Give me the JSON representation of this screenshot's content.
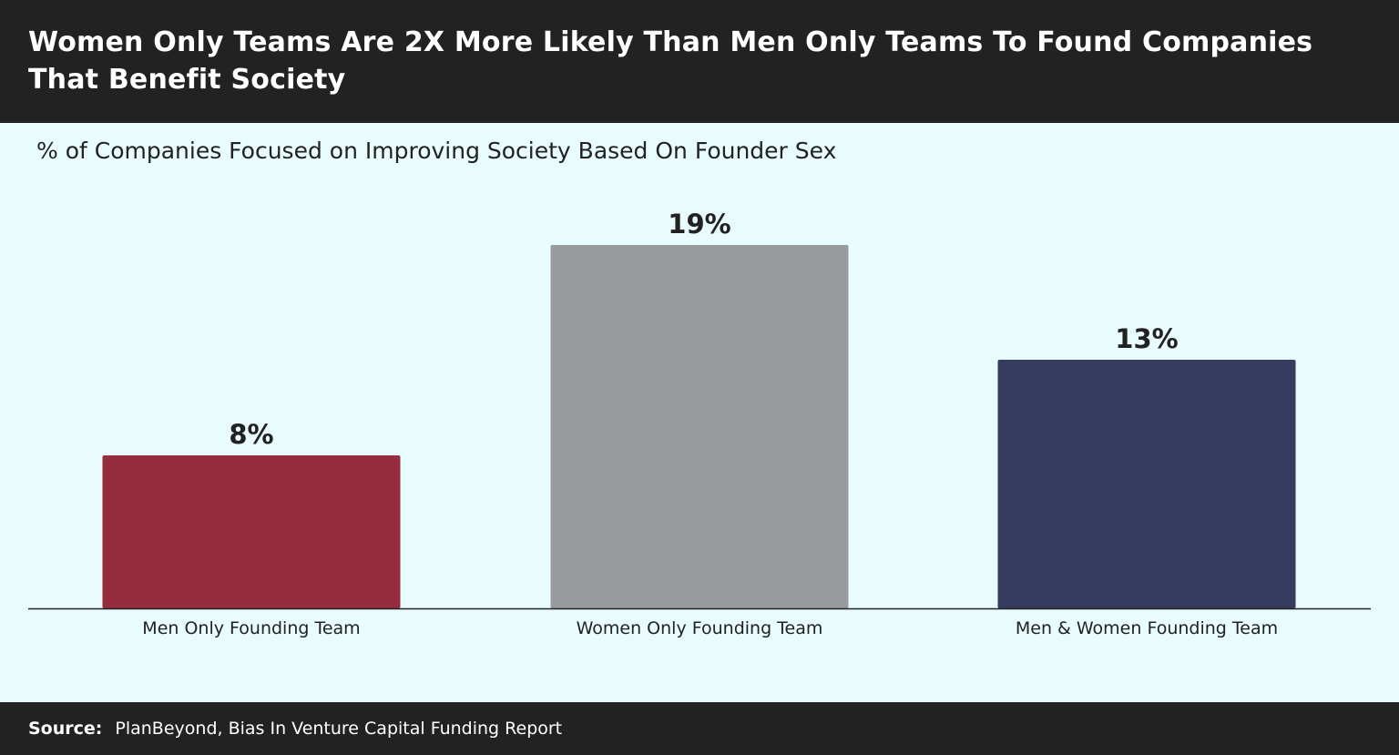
{
  "header": {
    "title": "Women Only Teams Are 2X More Likely Than Men Only Teams To Found Companies That Benefit Society"
  },
  "footer": {
    "source_label": "Source:",
    "source_text": "PlanBeyond, Bias In Venture Capital Funding Report"
  },
  "chart_data": {
    "type": "bar",
    "title": "% of Companies Focused on Improving Society Based On Founder Sex",
    "xlabel": "",
    "ylabel": "",
    "categories": [
      "Men Only Founding Team",
      "Women Only Founding Team",
      "Men & Women Founding Team"
    ],
    "values": [
      8,
      19,
      13
    ],
    "data_labels": [
      "8%",
      "19%",
      "13%"
    ],
    "colors": [
      "#952d3e",
      "#999c9c",
      "#353c60"
    ],
    "ylim": [
      0,
      19
    ],
    "grid": false,
    "legend": "none"
  }
}
